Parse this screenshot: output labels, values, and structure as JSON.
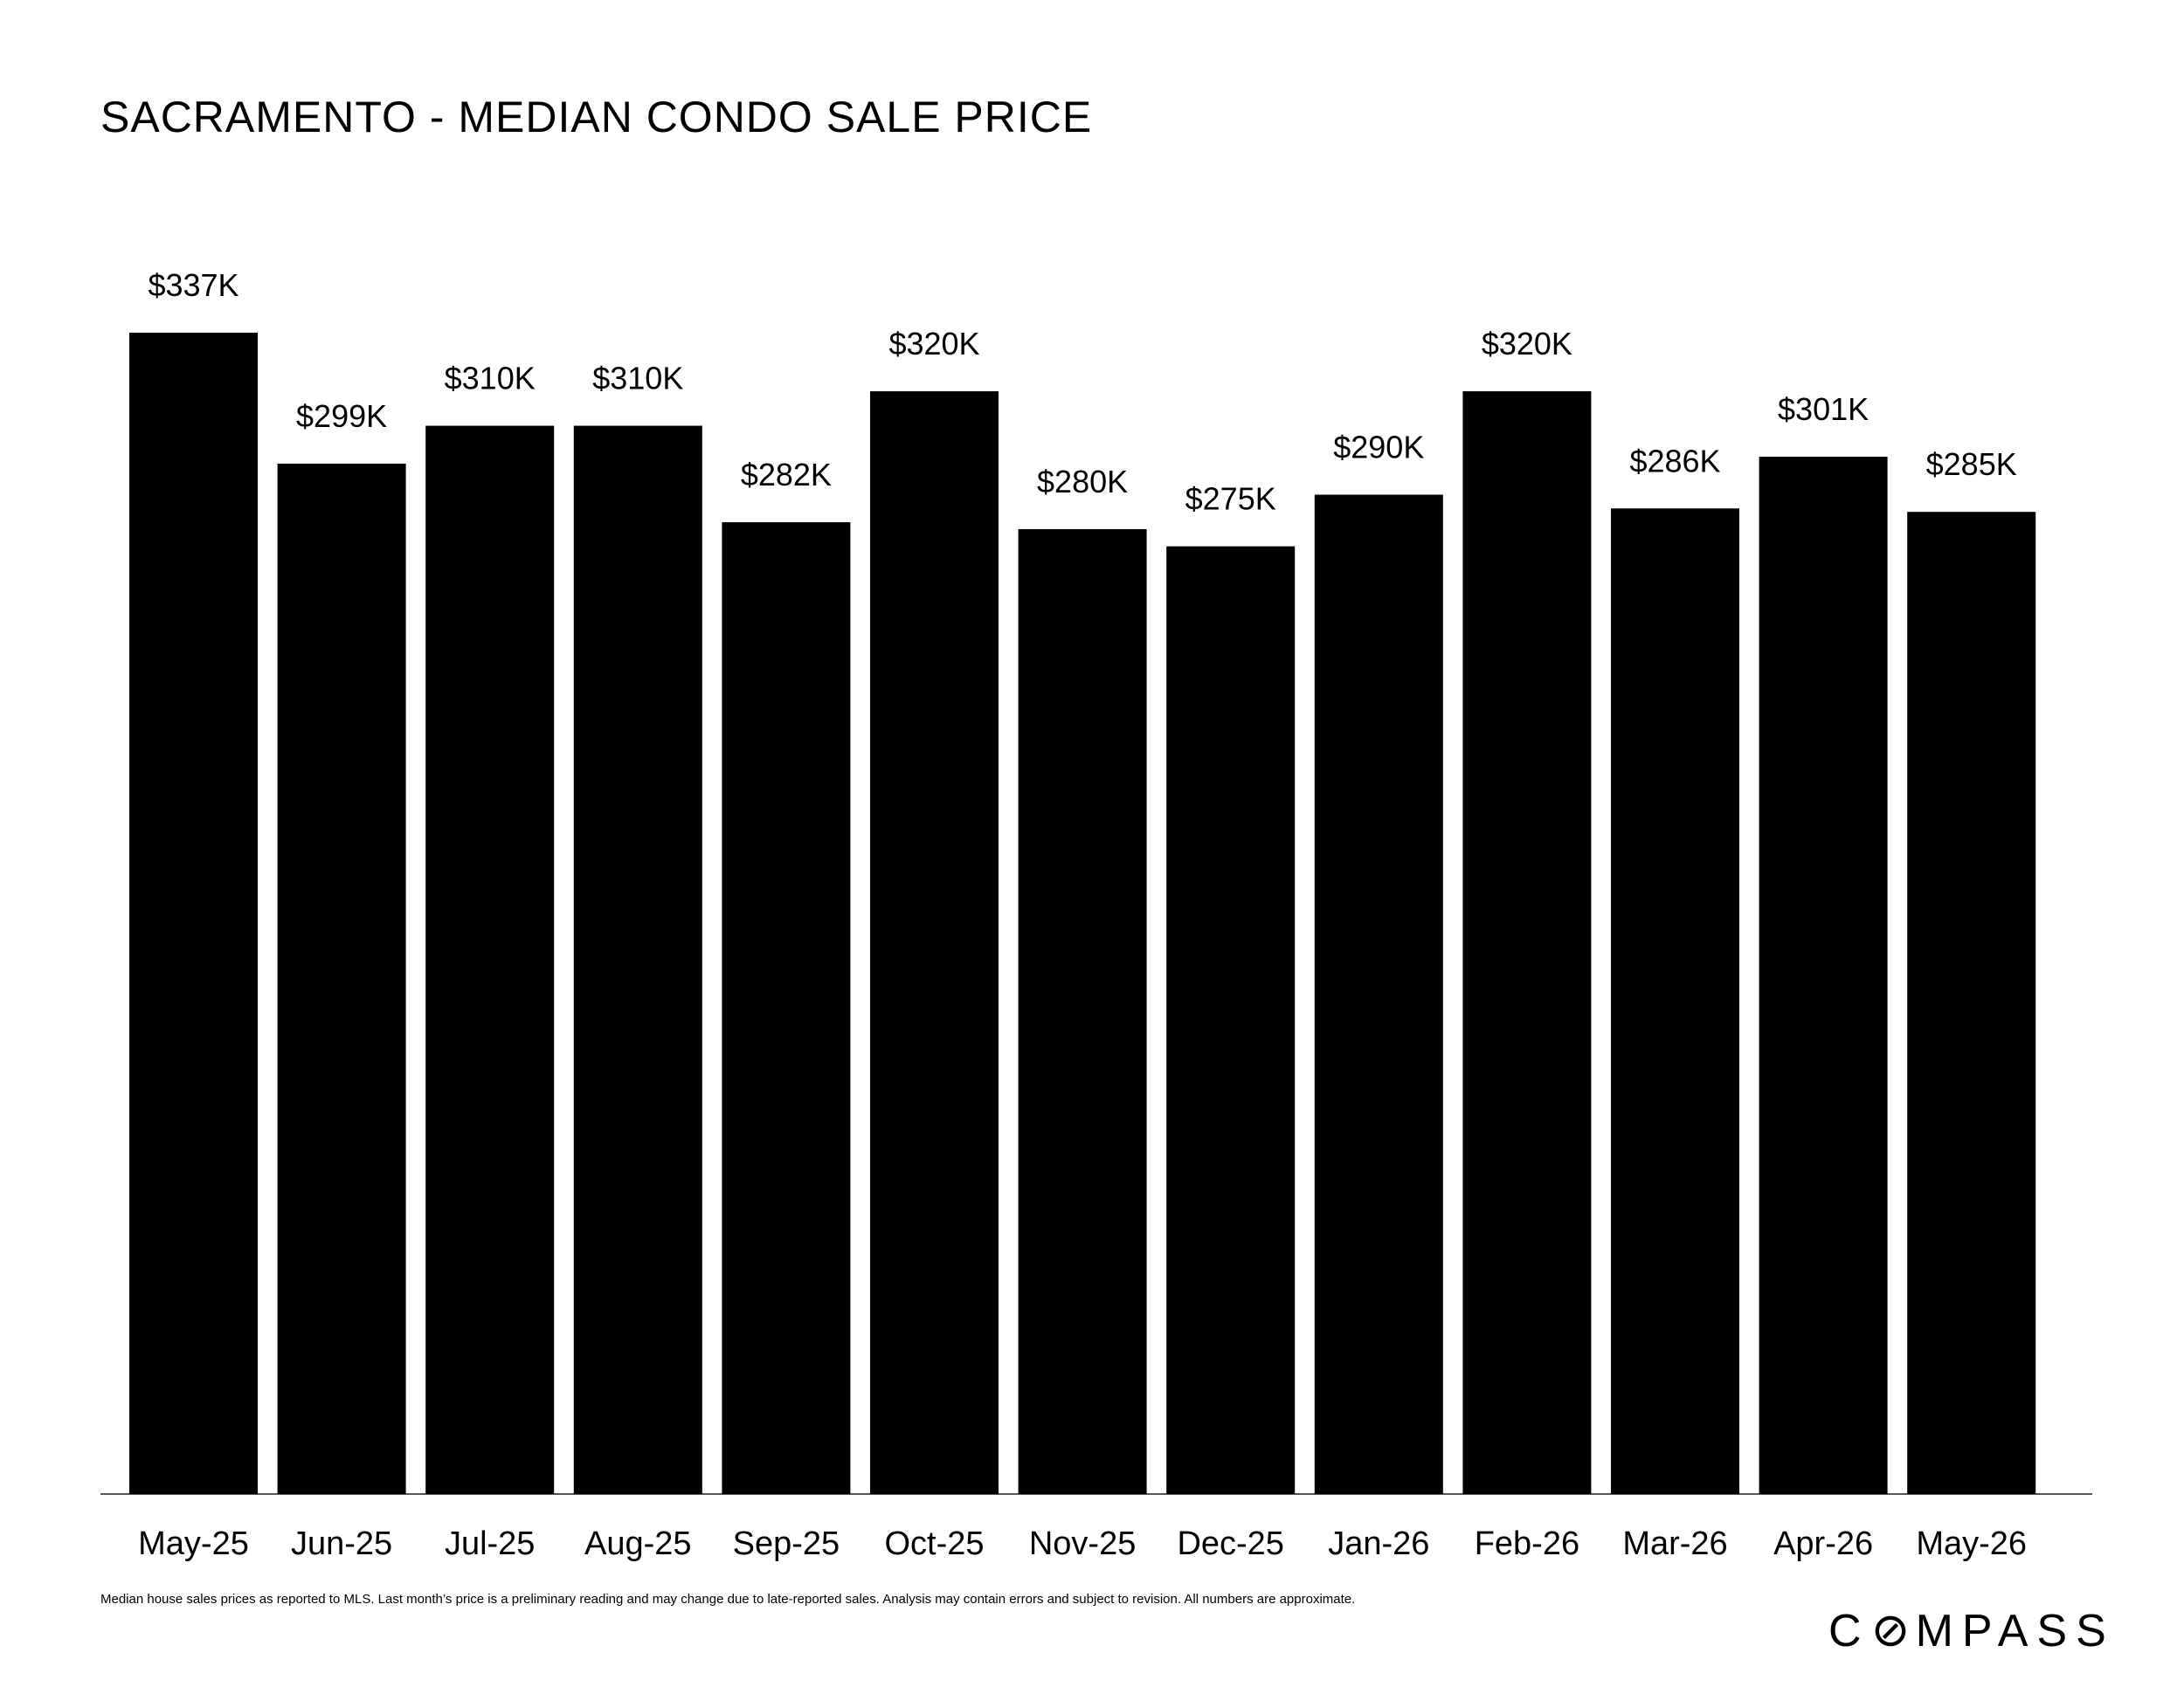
{
  "title": "SACRAMENTO - MEDIAN CONDO SALE PRICE",
  "footnote": "Median house sales prices as reported to MLS. Last month’s price is a preliminary reading and may change due to late-reported sales. Analysis may contain errors and subject to revision. All numbers are approximate.",
  "logo": {
    "text": "COMPASS",
    "before": "C",
    "after": "MPASS"
  },
  "colors": {
    "bar": "#000000",
    "background": "#ffffff",
    "text": "#000000"
  },
  "chart_data": {
    "type": "bar",
    "title": "SACRAMENTO - MEDIAN CONDO SALE PRICE",
    "xlabel": "",
    "ylabel": "",
    "ylim": [
      0,
      337
    ],
    "grid": false,
    "categories": [
      "May-25",
      "Jun-25",
      "Jul-25",
      "Aug-25",
      "Sep-25",
      "Oct-25",
      "Nov-25",
      "Dec-25",
      "Jan-26",
      "Feb-26",
      "Mar-26",
      "Apr-26",
      "May-26"
    ],
    "values": [
      337,
      299,
      310,
      310,
      282,
      320,
      280,
      275,
      290,
      320,
      286,
      301,
      285
    ],
    "data_labels": [
      "$337K",
      "$299K",
      "$310K",
      "$310K",
      "$282K",
      "$320K",
      "$280K",
      "$275K",
      "$290K",
      "$320K",
      "$286K",
      "$301K",
      "$285K"
    ]
  }
}
